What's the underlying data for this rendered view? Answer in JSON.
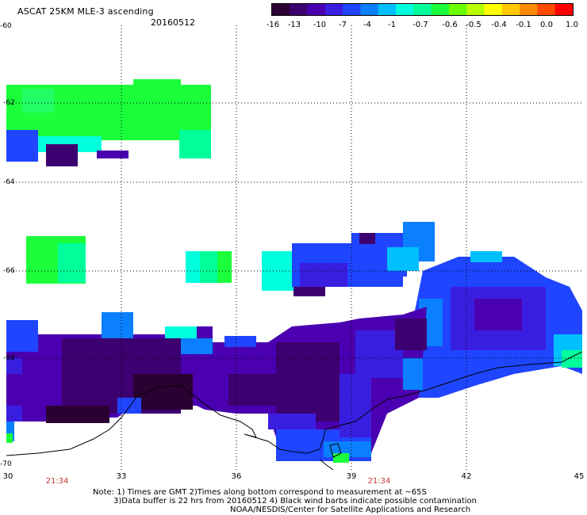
{
  "header": {
    "title": "ASCAT 25KM MLE-3 ascending",
    "date": "20160512"
  },
  "colorbar": {
    "colors": [
      "#2b0033",
      "#3d0070",
      "#4a00b0",
      "#3a1ee0",
      "#1f45ff",
      "#0a80ff",
      "#00bfff",
      "#00ffdd",
      "#00ff9a",
      "#1aff3a",
      "#6aff00",
      "#b8ff00",
      "#ffff00",
      "#ffc800",
      "#ff8a00",
      "#ff4a00",
      "#ff0000"
    ],
    "tick_labels": [
      "-16",
      "-13",
      "-10",
      "-7",
      "-4",
      "-1",
      "-0.7",
      "-0.6",
      "-0.5",
      "-0.4",
      "-0.1",
      "0.0",
      "1.0"
    ]
  },
  "map": {
    "lon_labels": [
      "30",
      "33",
      "36",
      "39",
      "42",
      "45"
    ],
    "lat_labels": [
      "-60",
      "-62",
      "-64",
      "-66",
      "-68",
      "-70"
    ],
    "time_labels": [
      "21:34",
      "21:34"
    ]
  },
  "notes": {
    "line1": "Note: 1) Times are GMT 2)Times along bottom correspond to measurement at ~65S",
    "line2": "3)Data buffer is 22 hrs from 20160512 4) Black wind barbs indicate possible contamination",
    "line3": "NOAA/NESDIS/Center for Satellite Applications and Research"
  }
}
